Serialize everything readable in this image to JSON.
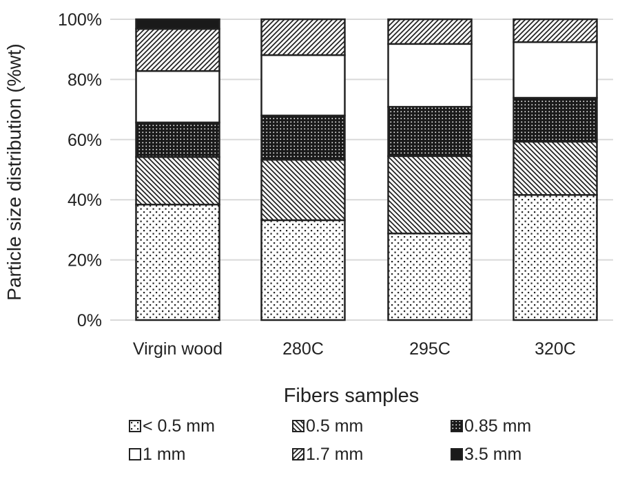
{
  "chart_data": {
    "type": "bar",
    "stacked": true,
    "title": "",
    "xlabel": "Fibers samples",
    "ylabel": "Particle size distribution (%wt)",
    "ylim": [
      0,
      100
    ],
    "yticks": [
      "0%",
      "20%",
      "40%",
      "60%",
      "80%",
      "100%"
    ],
    "grid": true,
    "legend_position": "bottom",
    "categories": [
      "Virgin wood",
      "280C",
      "295C",
      "320C"
    ],
    "series": [
      {
        "name": "< 0.5 mm",
        "pattern": "sparse-dots",
        "values": [
          38.4,
          33.2,
          28.8,
          41.6
        ]
      },
      {
        "name": "0.5 mm",
        "pattern": "back-diagonal",
        "values": [
          15.8,
          20.1,
          25.7,
          17.7
        ]
      },
      {
        "name": "0.85 mm",
        "pattern": "dense-dark-dots",
        "values": [
          11.5,
          14.7,
          16.4,
          14.6
        ]
      },
      {
        "name": "1 mm",
        "pattern": "solid-white",
        "values": [
          17.1,
          20.1,
          20.9,
          18.5
        ]
      },
      {
        "name": "1.7 mm",
        "pattern": "forward-diagonal",
        "values": [
          14.0,
          11.9,
          8.2,
          7.6
        ]
      },
      {
        "name": "3.5 mm",
        "pattern": "solid-black",
        "values": [
          3.2,
          0,
          0,
          0
        ]
      }
    ],
    "colors": {
      "grid": "#d9d9d9",
      "outline": "#222222"
    }
  }
}
